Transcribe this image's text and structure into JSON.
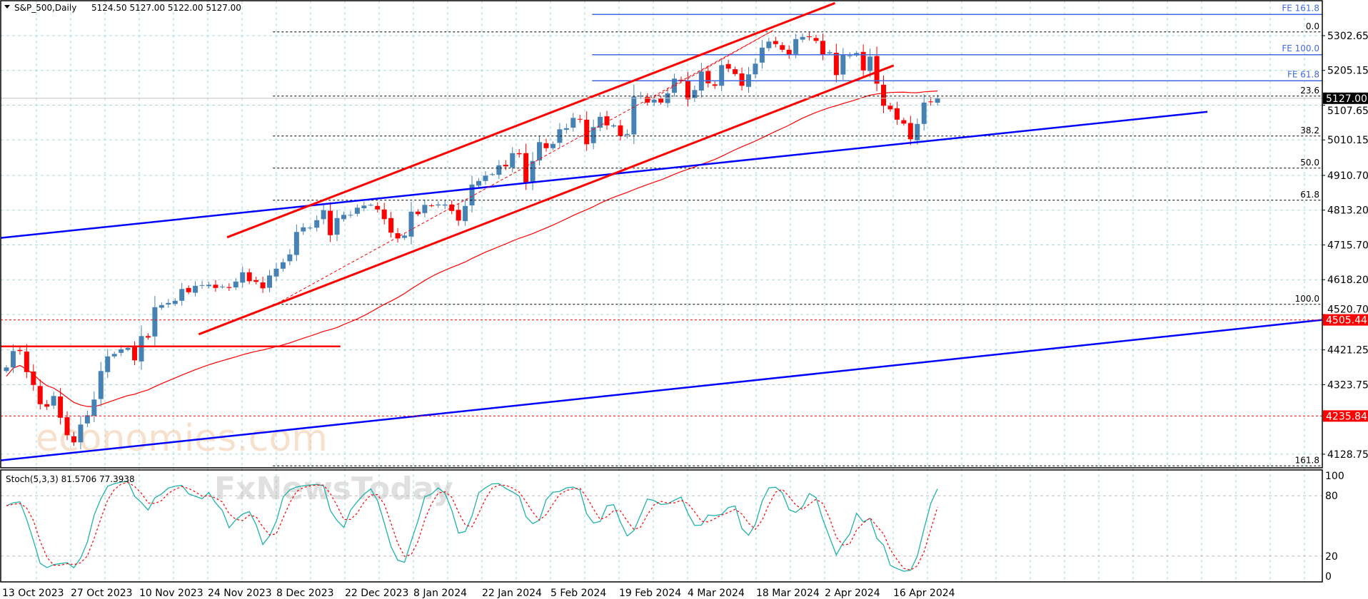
{
  "header": {
    "symbol": "S&P_500,Daily",
    "ohlc": "5124.50 5127.00 5122.00 5127.00"
  },
  "watermark": {
    "line1": "economies.com",
    "line2": "FxNewsToday"
  },
  "stoch": {
    "label": "Stoch(5,3,3) 81.5706 77.3938",
    "levels": [
      100,
      80,
      20,
      0
    ],
    "k_color": "#20B2AA",
    "d_color": "#FF0000"
  },
  "chart_data": {
    "type": "candlestick",
    "title": "S&P_500,Daily",
    "ylim": [
      4090.6,
      5402.6
    ],
    "y_ticks": [
      "5302.65",
      "5205.15",
      "5107.65",
      "5010.15",
      "4910.70",
      "4813.20",
      "4715.70",
      "4618.20",
      "4520.70",
      "4421.25",
      "4323.75",
      "4128.75"
    ],
    "x_tick_labels": [
      "13 Oct 2023",
      "27 Oct 2023",
      "10 Nov 2023",
      "24 Nov 2023",
      "8 Dec 2023",
      "22 Dec 2023",
      "8 Jan 2024",
      "22 Jan 2024",
      "5 Feb 2024",
      "19 Feb 2024",
      "4 Mar 2024",
      "18 Mar 2024",
      "2 Apr 2024",
      "16 Apr 2024"
    ],
    "colors": {
      "bull": "#4682B4",
      "bear": "#FF0000",
      "ma": "#FF0000",
      "grid": "#A9D8DC"
    },
    "closes": [
      4372,
      4418,
      4418,
      4359,
      4323,
      4269,
      4262,
      4292,
      4231,
      4182,
      4162,
      4212,
      4238,
      4282,
      4362,
      4403,
      4410,
      4423,
      4427,
      4392,
      4460,
      4456,
      4541,
      4547,
      4553,
      4559,
      4592,
      4583,
      4601,
      4603,
      4604,
      4595,
      4599,
      4595,
      4613,
      4639,
      4614,
      4612,
      4594,
      4630,
      4649,
      4667,
      4689,
      4752,
      4765,
      4764,
      4785,
      4813,
      4743,
      4791,
      4800,
      4800,
      4820,
      4826,
      4828,
      4815,
      4788,
      4750,
      4734,
      4742,
      4809,
      4802,
      4828,
      4825,
      4829,
      4829,
      4811,
      4784,
      4825,
      4885,
      4895,
      4910,
      4914,
      4939,
      4936,
      4973,
      4970,
      4891,
      4951,
      5004,
      4987,
      4999,
      5040,
      5043,
      5072,
      5067,
      4998,
      5046,
      5075,
      5051,
      5051,
      5021,
      5027,
      5132,
      5134,
      5115,
      5123,
      5115,
      5141,
      5182,
      5176,
      5124,
      5150,
      5202,
      5169,
      5162,
      5220,
      5210,
      5195,
      5162,
      5194,
      5224,
      5269,
      5286,
      5279,
      5263,
      5248,
      5293,
      5299,
      5299,
      5288,
      5250,
      5256,
      5192,
      5249,
      5247,
      5254,
      5205,
      5244,
      5168,
      5106,
      5096,
      5067,
      5056,
      5012,
      5055,
      5115,
      5116,
      5127
    ],
    "moving_average": {
      "type": "SMA",
      "period": 50
    },
    "last_price": {
      "value": "5127.00",
      "numeric": 5127.0
    },
    "price_marks": [
      {
        "value": "4505.44",
        "numeric": 4505.44
      },
      {
        "value": "4235.84",
        "numeric": 4235.84
      }
    ],
    "trendlines": [
      {
        "name": "blue-trendline-upper",
        "points": [
          [
            -1,
            4735
          ],
          [
            178,
            5089
          ]
        ],
        "color": "#0000FF",
        "width": 2.5,
        "dash": ""
      },
      {
        "name": "blue-trendline-lower",
        "points": [
          [
            -1,
            4111
          ],
          [
            195,
            4505.44
          ]
        ],
        "color": "#0000FF",
        "width": 2.5,
        "dash": ""
      },
      {
        "name": "red-channel-upper",
        "points": [
          [
            32.7,
            4737
          ],
          [
            122.8,
            5394
          ]
        ],
        "color": "#FF0000",
        "width": 3,
        "dash": ""
      },
      {
        "name": "red-channel-lower",
        "points": [
          [
            28.5,
            4465
          ],
          [
            131.5,
            5219
          ]
        ],
        "color": "#FF0000",
        "width": 3,
        "dash": ""
      },
      {
        "name": "red-support-horizontal",
        "points": [
          [
            -1,
            4431
          ],
          [
            49.5,
            4431
          ]
        ],
        "color": "#FF0000",
        "width": 2.5,
        "dash": ""
      },
      {
        "name": "fib-anchor-dashed",
        "points": [
          [
            39.5,
            4545
          ],
          [
            113.6,
            5317
          ]
        ],
        "color": "#FF0000",
        "width": 1,
        "dash": "4,3"
      },
      {
        "name": "fe-anchor-dashed",
        "points": [
          [
            94.5,
            5113
          ],
          [
            113.6,
            5317
          ]
        ],
        "color": "#FF0000",
        "width": 1,
        "dash": "4,3"
      }
    ],
    "fibonacci": {
      "start_index": 39.5,
      "levels": [
        {
          "label": "0.0",
          "price": 5313
        },
        {
          "label": "23.6",
          "price": 5133
        },
        {
          "label": "38.2",
          "price": 5021
        },
        {
          "label": "50.0",
          "price": 4931
        },
        {
          "label": "61.8",
          "price": 4841
        },
        {
          "label": "100.0",
          "price": 4549
        },
        {
          "label": "161.8",
          "price": 4096
        }
      ]
    },
    "fib_expansion": {
      "start_index": 86.8,
      "levels": [
        {
          "label": "FE 161.8",
          "price": 5362
        },
        {
          "label": "FE 100.0",
          "price": 5249
        },
        {
          "label": "FE 61.8",
          "price": 5176
        }
      ]
    }
  }
}
